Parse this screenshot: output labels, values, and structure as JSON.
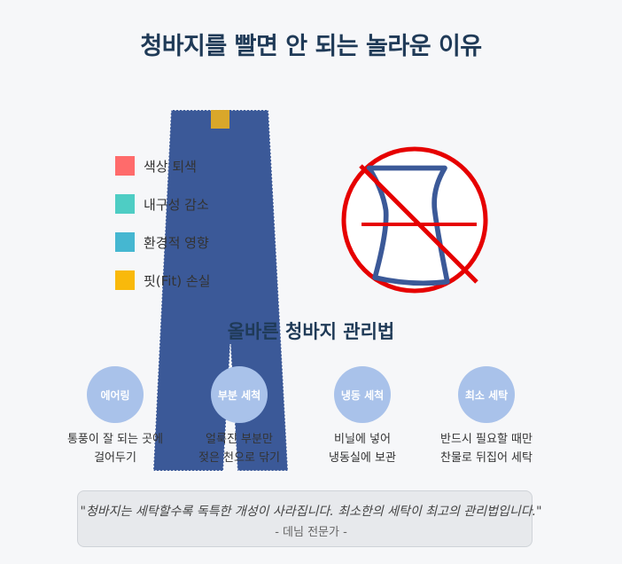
{
  "title": "청바지를 빨면 안 되는 놀라운 이유",
  "legend": [
    {
      "label": "색상 퇴색",
      "color": "#ff6b6b"
    },
    {
      "label": "내구성 감소",
      "color": "#4ecdc4"
    },
    {
      "label": "환경적 영향",
      "color": "#45b7d1"
    },
    {
      "label": "핏(Fit) 손실",
      "color": "#f9b90b"
    }
  ],
  "jeans_color": "#3b5998",
  "tag_color": "#d9a72a",
  "no_wash_color": "#e60000",
  "subtitle": "올바른 청바지 관리법",
  "tips": [
    {
      "name": "에어링",
      "desc": "통풍이 잘 되는 곳에\n걸어두기"
    },
    {
      "name": "부분 세척",
      "desc": "얼룩진 부분만\n젖은 천으로 닦기"
    },
    {
      "name": "냉동 세척",
      "desc": "비닐에 넣어\n냉동실에 보관"
    },
    {
      "name": "최소 세탁",
      "desc": "반드시 필요할 때만\n찬물로 뒤집어 세탁"
    }
  ],
  "quote": {
    "text": "\"청바지는 세탁할수록 독특한 개성이 사라집니다. 최소한의 세탁이 최고의 관리법입니다.\"",
    "source": "- 데님 전문가 -"
  }
}
